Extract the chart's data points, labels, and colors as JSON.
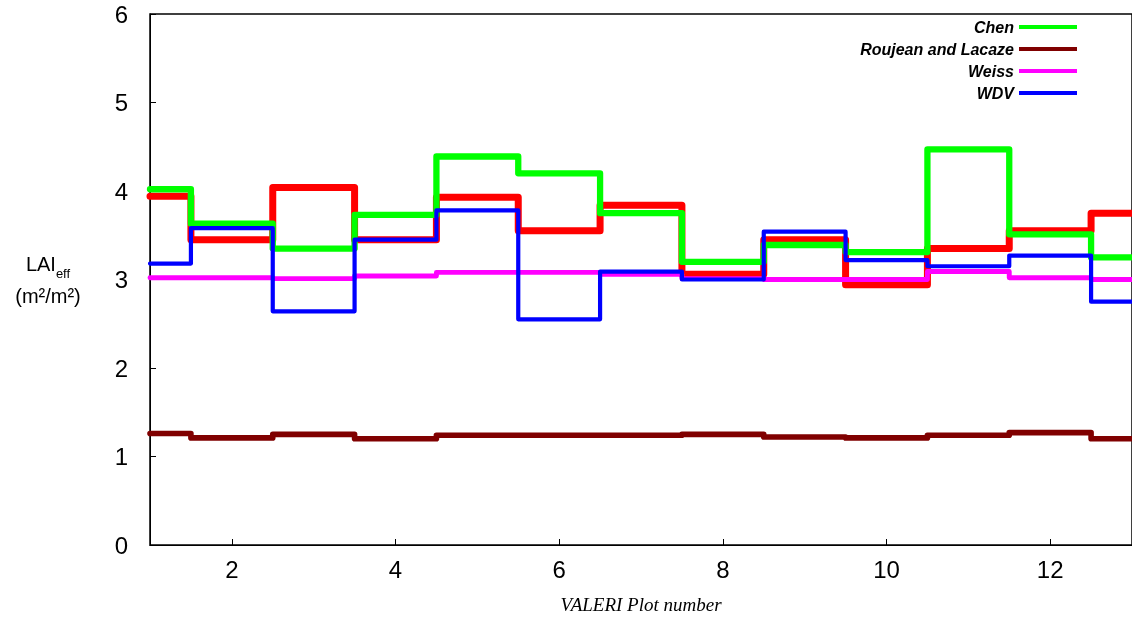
{
  "chart_data": {
    "type": "step",
    "xlabel": "VALERI Plot number",
    "ylabel": "LAI$_{eff}$\n(m²/m²)",
    "x": [
      1,
      2,
      3,
      4,
      5,
      6,
      7,
      8,
      9,
      10,
      11,
      12,
      13
    ],
    "xlim": [
      1,
      13
    ],
    "xticks": [
      2,
      4,
      6,
      8,
      10,
      12
    ],
    "ylim": [
      0,
      6
    ],
    "yticks": [
      0,
      1,
      2,
      3,
      4,
      5,
      6
    ],
    "grid": false,
    "legend": "top right",
    "marker": "none",
    "line_style": "solid",
    "series": [
      {
        "color": "#ff0000",
        "values": [
          3.94,
          3.45,
          4.04,
          3.45,
          3.93,
          3.55,
          3.84,
          3.06,
          3.45,
          2.94,
          3.35,
          3.55,
          3.75
        ]
      },
      {
        "name": "Chen",
        "color": "#00ff00",
        "values": [
          4.02,
          3.63,
          3.35,
          3.73,
          4.39,
          4.2,
          3.75,
          3.2,
          3.39,
          3.31,
          4.47,
          3.51,
          3.25
        ]
      },
      {
        "name": "Roujean and Lacaze",
        "color": "#800000",
        "values": [
          1.26,
          1.21,
          1.25,
          1.2,
          1.24,
          1.24,
          1.24,
          1.25,
          1.22,
          1.21,
          1.24,
          1.27,
          1.2
        ]
      },
      {
        "name": "Weiss",
        "color": "#ff00ff",
        "values": [
          3.02,
          3.02,
          3.01,
          3.04,
          3.08,
          3.08,
          3.06,
          3.01,
          3.0,
          3.0,
          3.09,
          3.02,
          3.0
        ]
      },
      {
        "name": "WDV",
        "color": "#0000ff",
        "values": [
          3.18,
          3.58,
          2.64,
          3.45,
          3.78,
          2.55,
          3.09,
          3.0,
          3.54,
          3.22,
          3.15,
          3.27,
          2.75
        ]
      }
    ]
  }
}
